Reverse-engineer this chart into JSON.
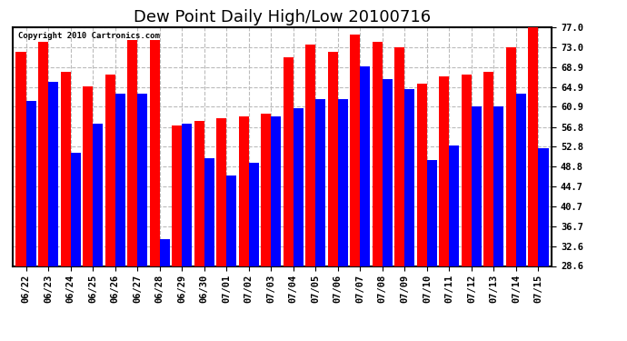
{
  "title": "Dew Point Daily High/Low 20100716",
  "copyright": "Copyright 2010 Cartronics.com",
  "dates": [
    "06/22",
    "06/23",
    "06/24",
    "06/25",
    "06/26",
    "06/27",
    "06/28",
    "06/29",
    "06/30",
    "07/01",
    "07/02",
    "07/03",
    "07/04",
    "07/05",
    "07/06",
    "07/07",
    "07/08",
    "07/09",
    "07/10",
    "07/11",
    "07/12",
    "07/13",
    "07/14",
    "07/15"
  ],
  "highs": [
    72.0,
    74.0,
    68.0,
    65.0,
    67.5,
    74.5,
    74.5,
    57.0,
    58.0,
    58.5,
    59.0,
    59.5,
    71.0,
    73.5,
    72.0,
    75.5,
    74.0,
    73.0,
    65.5,
    67.0,
    67.5,
    68.0,
    73.0,
    77.0
  ],
  "lows": [
    62.0,
    66.0,
    51.5,
    57.5,
    63.5,
    63.5,
    34.0,
    57.5,
    50.5,
    47.0,
    49.5,
    59.0,
    60.5,
    62.5,
    62.5,
    69.0,
    66.5,
    64.5,
    50.0,
    53.0,
    61.0,
    61.0,
    63.5,
    52.5
  ],
  "high_color": "#ff0000",
  "low_color": "#0000ff",
  "bg_color": "#ffffff",
  "grid_color": "#bbbbbb",
  "ylim": [
    28.6,
    77.0
  ],
  "yticks": [
    28.6,
    32.6,
    36.7,
    40.7,
    44.7,
    48.8,
    52.8,
    56.8,
    60.9,
    64.9,
    68.9,
    73.0,
    77.0
  ],
  "title_fontsize": 13,
  "tick_fontsize": 7.5,
  "bar_width": 0.45,
  "figsize": [
    6.9,
    3.75
  ],
  "dpi": 100
}
